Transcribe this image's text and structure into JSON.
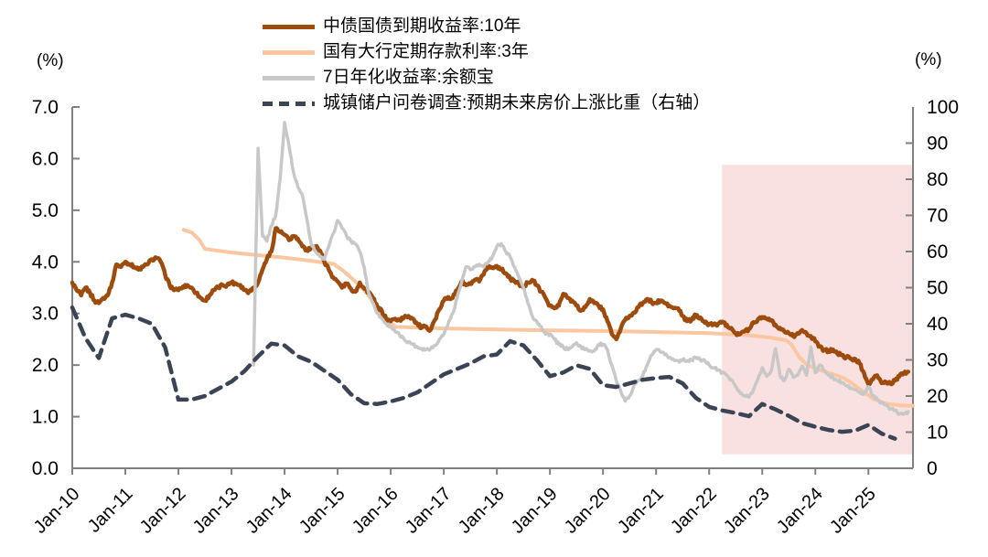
{
  "chart_data": {
    "type": "line",
    "title": "",
    "left_axis": {
      "unit_label": "(%)",
      "min": 0,
      "max": 7,
      "tick_labels": [
        "0.0",
        "1.0",
        "2.0",
        "3.0",
        "4.0",
        "5.0",
        "6.0",
        "7.0"
      ]
    },
    "right_axis": {
      "unit_label": "(%)",
      "min": 0,
      "max": 100,
      "tick_labels": [
        "0",
        "10",
        "20",
        "30",
        "40",
        "50",
        "60",
        "70",
        "80",
        "90",
        "100"
      ]
    },
    "x_axis": {
      "tick_labels": [
        "Jan-10",
        "Jan-11",
        "Jan-12",
        "Jan-13",
        "Jan-14",
        "Jan-15",
        "Jan-16",
        "Jan-17",
        "Jan-18",
        "Jan-19",
        "Jan-20",
        "Jan-21",
        "Jan-22",
        "Jan-23",
        "Jan-24",
        "Jan-25"
      ],
      "start_year": 2010,
      "t_max": 2025.84
    },
    "highlight_region": {
      "x_start": 2022.24,
      "x_end": 2025.84,
      "y_bottom": 0.27,
      "y_top": 5.88,
      "color": "#FAE1E1"
    },
    "grid": "off",
    "legend_position": "top",
    "series": [
      {
        "name": "中债国债到期收益率:10年",
        "axis": "left",
        "line": "solid",
        "color": "#9E4B0E",
        "width": 4.5,
        "freq": "monthly",
        "start": 2010.0,
        "texture": 0.035,
        "values": [
          3.6,
          3.45,
          3.35,
          3.5,
          3.4,
          3.25,
          3.2,
          3.3,
          3.35,
          3.6,
          3.95,
          3.9,
          4.0,
          3.95,
          3.9,
          3.85,
          3.9,
          3.95,
          4.05,
          4.08,
          4.0,
          3.75,
          3.55,
          3.45,
          3.45,
          3.52,
          3.55,
          3.5,
          3.4,
          3.3,
          3.25,
          3.35,
          3.45,
          3.5,
          3.55,
          3.55,
          3.6,
          3.58,
          3.55,
          3.45,
          3.42,
          3.5,
          3.6,
          3.85,
          4.05,
          4.2,
          4.65,
          4.58,
          4.52,
          4.42,
          4.5,
          4.45,
          4.3,
          4.22,
          4.28,
          4.3,
          4.22,
          4.0,
          3.85,
          3.7,
          3.62,
          3.5,
          3.58,
          3.48,
          3.42,
          3.6,
          3.48,
          3.42,
          3.3,
          3.1,
          3.05,
          2.88,
          2.85,
          2.9,
          2.87,
          2.92,
          2.95,
          2.9,
          2.8,
          2.72,
          2.75,
          2.68,
          2.88,
          3.08,
          3.25,
          3.32,
          3.3,
          3.45,
          3.62,
          3.55,
          3.57,
          3.65,
          3.62,
          3.75,
          3.92,
          3.88,
          3.92,
          3.85,
          3.78,
          3.68,
          3.62,
          3.57,
          3.5,
          3.6,
          3.65,
          3.55,
          3.42,
          3.3,
          3.15,
          3.1,
          3.15,
          3.38,
          3.3,
          3.25,
          3.15,
          3.05,
          3.12,
          3.28,
          3.2,
          3.15,
          3.08,
          2.85,
          2.6,
          2.5,
          2.7,
          2.88,
          2.95,
          3.02,
          3.12,
          3.2,
          3.28,
          3.22,
          3.2,
          3.25,
          3.2,
          3.15,
          3.1,
          3.1,
          2.95,
          2.85,
          2.87,
          2.97,
          2.92,
          2.82,
          2.8,
          2.78,
          2.8,
          2.84,
          2.78,
          2.72,
          2.62,
          2.6,
          2.65,
          2.7,
          2.83,
          2.88,
          2.93,
          2.9,
          2.87,
          2.78,
          2.72,
          2.65,
          2.62,
          2.56,
          2.62,
          2.68,
          2.62,
          2.56,
          2.46,
          2.36,
          2.29,
          2.28,
          2.3,
          2.22,
          2.2,
          2.15,
          2.12,
          2.12,
          2.03,
          1.85,
          1.63,
          1.72,
          1.8,
          1.65,
          1.67,
          1.64,
          1.7,
          1.78,
          1.84,
          1.87
        ]
      },
      {
        "name": "国有大行定期存款利率:3年",
        "axis": "left",
        "line": "solid",
        "color": "#FAC7A0",
        "width": 4,
        "points": [
          [
            2012.1,
            4.62
          ],
          [
            2012.25,
            4.57
          ],
          [
            2012.4,
            4.42
          ],
          [
            2012.5,
            4.25
          ],
          [
            2013.0,
            4.18
          ],
          [
            2013.5,
            4.13
          ],
          [
            2014.0,
            4.08
          ],
          [
            2014.5,
            4.02
          ],
          [
            2014.92,
            3.96
          ],
          [
            2015.1,
            3.83
          ],
          [
            2015.3,
            3.65
          ],
          [
            2015.5,
            3.45
          ],
          [
            2015.7,
            3.2
          ],
          [
            2015.9,
            2.9
          ],
          [
            2016.1,
            2.74
          ],
          [
            2017.0,
            2.71
          ],
          [
            2018.0,
            2.69
          ],
          [
            2019.0,
            2.67
          ],
          [
            2020.0,
            2.66
          ],
          [
            2021.0,
            2.64
          ],
          [
            2022.0,
            2.62
          ],
          [
            2022.7,
            2.58
          ],
          [
            2023.1,
            2.54
          ],
          [
            2023.45,
            2.48
          ],
          [
            2023.55,
            2.4
          ],
          [
            2023.7,
            2.15
          ],
          [
            2023.85,
            2.0
          ],
          [
            2024.1,
            1.9
          ],
          [
            2024.4,
            1.8
          ],
          [
            2024.55,
            1.74
          ],
          [
            2024.75,
            1.6
          ],
          [
            2024.95,
            1.45
          ],
          [
            2025.1,
            1.34
          ],
          [
            2025.35,
            1.25
          ],
          [
            2025.6,
            1.22
          ],
          [
            2025.84,
            1.21
          ]
        ]
      },
      {
        "name": "7日年化收益率:余额宝",
        "axis": "left",
        "line": "solid",
        "color": "#C8C8C8",
        "width": 3.5,
        "freq": "monthly",
        "start": 2013.4167,
        "texture": 0.03,
        "values": [
          2.0,
          6.2,
          4.5,
          4.4,
          4.7,
          4.9,
          5.6,
          6.7,
          6.25,
          5.75,
          5.45,
          5.3,
          4.85,
          4.35,
          4.2,
          4.1,
          4.05,
          4.3,
          4.55,
          4.8,
          4.65,
          4.5,
          4.4,
          4.35,
          4.2,
          3.9,
          3.4,
          3.2,
          3.0,
          2.9,
          2.8,
          2.75,
          2.65,
          2.58,
          2.5,
          2.45,
          2.4,
          2.35,
          2.32,
          2.3,
          2.32,
          2.38,
          2.5,
          2.6,
          2.8,
          3.0,
          3.3,
          3.6,
          3.9,
          3.85,
          3.9,
          3.95,
          3.9,
          4.0,
          4.1,
          4.3,
          4.35,
          4.2,
          4.1,
          3.9,
          3.7,
          3.5,
          3.2,
          2.95,
          2.85,
          2.75,
          2.6,
          2.6,
          2.5,
          2.4,
          2.35,
          2.3,
          2.35,
          2.43,
          2.35,
          2.3,
          2.28,
          2.27,
          2.4,
          2.4,
          2.3,
          2.0,
          1.7,
          1.5,
          1.3,
          1.4,
          1.6,
          1.7,
          1.8,
          2.0,
          2.2,
          2.3,
          2.25,
          2.2,
          2.15,
          2.1,
          2.08,
          2.1,
          2.08,
          2.1,
          2.15,
          2.1,
          2.08,
          2.0,
          1.95,
          1.9,
          1.85,
          1.8,
          1.72,
          1.58,
          1.45,
          1.4,
          1.38,
          1.52,
          1.72,
          1.95,
          1.78,
          1.88,
          2.32,
          1.8,
          1.7,
          1.92,
          1.76,
          1.8,
          1.98,
          1.8,
          2.35,
          1.85,
          2.0,
          1.9,
          1.8,
          1.76,
          1.7,
          1.66,
          1.6,
          1.56,
          1.52,
          1.47,
          1.44,
          1.58,
          1.4,
          1.33,
          1.28,
          1.22,
          1.16,
          1.12,
          1.06,
          1.05,
          1.1
        ]
      },
      {
        "name": "城镇储户问卷调查:预期未来房价上涨比重（右轴）",
        "axis": "right",
        "line": "dashed",
        "color": "#3B4454",
        "width": 4.5,
        "freq": "quarterly",
        "start": 2010.0,
        "values": [
          44.5,
          36.0,
          30.5,
          41.5,
          42.5,
          41.5,
          40.0,
          33.5,
          19.0,
          19.0,
          20.0,
          22.0,
          24.0,
          27.0,
          31.0,
          34.5,
          34.0,
          31.0,
          29.5,
          27.0,
          24.5,
          20.5,
          18.0,
          17.8,
          18.5,
          19.5,
          21.0,
          23.5,
          26.0,
          27.5,
          29.0,
          31.0,
          31.5,
          35.2,
          34.0,
          30.0,
          25.5,
          26.5,
          28.5,
          27.5,
          23.0,
          22.5,
          23.5,
          24.5,
          25.0,
          25.3,
          23.5,
          19.5,
          17.0,
          16.0,
          15.3,
          14.4,
          17.8,
          16.3,
          14.5,
          12.5,
          11.5,
          10.6,
          10.1,
          10.4,
          12.0,
          9.6,
          8.2
        ]
      }
    ]
  },
  "colors": {
    "axis": "#808080",
    "tick_text": "#000000",
    "background": "#ffffff"
  }
}
